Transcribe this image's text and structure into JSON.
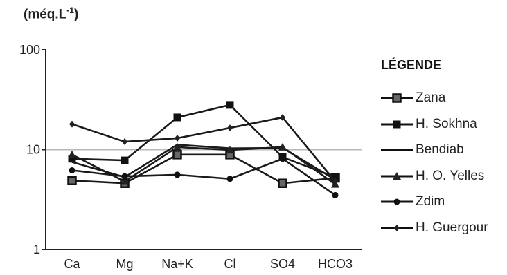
{
  "chart_data": {
    "type": "line",
    "ylabel_prefix": "(méq.L",
    "ylabel_exp": "-1",
    "ylabel_suffix": ")",
    "yscale": "log",
    "ylim": [
      1,
      100
    ],
    "yticks": [
      "1",
      "10",
      "100"
    ],
    "categories": [
      "Ca",
      "Mg",
      "Na+K",
      "Cl",
      "SO4",
      "HCO3"
    ],
    "reference_line": 10,
    "legend_title": "LÉGENDE",
    "series": [
      {
        "name": "Zana",
        "marker": "square-open",
        "values": [
          4.9,
          4.6,
          8.9,
          8.9,
          4.6,
          5.2
        ]
      },
      {
        "name": "H. Sokhna",
        "marker": "square",
        "values": [
          8.1,
          7.8,
          21,
          28,
          8.4,
          5.3
        ]
      },
      {
        "name": "Bendiab",
        "marker": "none",
        "values": [
          7.5,
          5.3,
          11.2,
          10.3,
          10.4,
          5.0
        ]
      },
      {
        "name": "H. O. Yelles",
        "marker": "triangle",
        "values": [
          8.9,
          4.8,
          10.6,
          9.9,
          10.6,
          4.5
        ]
      },
      {
        "name": "Zdim",
        "marker": "circle",
        "values": [
          6.2,
          5.4,
          5.6,
          5.1,
          8.1,
          3.5
        ]
      },
      {
        "name": "H. Guergour",
        "marker": "diamond",
        "values": [
          18,
          12,
          13,
          16.5,
          21,
          4.8
        ]
      }
    ]
  }
}
